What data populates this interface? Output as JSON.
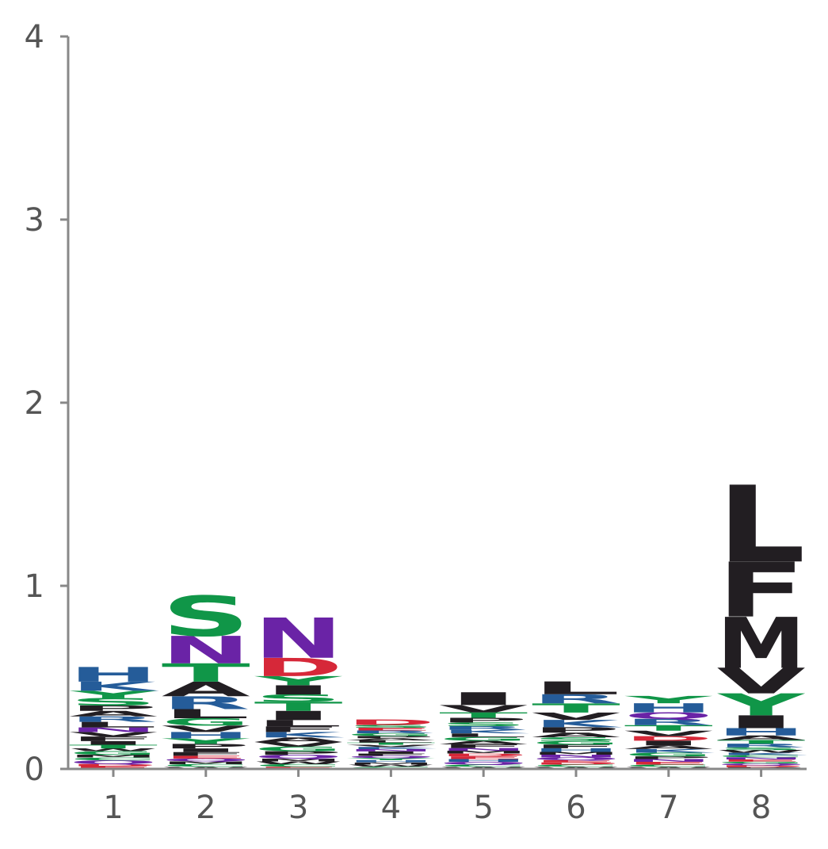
{
  "chart_data": {
    "type": "sequence-logo",
    "ylim": [
      0,
      4
    ],
    "yticks": [
      "0",
      "1",
      "2",
      "3",
      "4"
    ],
    "positions": [
      "1",
      "2",
      "3",
      "4",
      "5",
      "6",
      "7",
      "8"
    ],
    "colors": {
      "polar": "#109648",
      "basic": "#255C99",
      "acidic": "#D62839",
      "hydrophobic": "#221E22",
      "neutral": "#7D3CB5",
      "amide": "#6A23A6"
    },
    "stacks": [
      {
        "position": "1",
        "letters": [
          {
            "aa": "E",
            "h": 0.015,
            "color": "acidic"
          },
          {
            "aa": "D",
            "h": 0.012,
            "color": "acidic"
          },
          {
            "aa": "Q",
            "h": 0.02,
            "color": "amide"
          },
          {
            "aa": "C",
            "h": 0.015,
            "color": "polar"
          },
          {
            "aa": "M",
            "h": 0.015,
            "color": "hydrophobic"
          },
          {
            "aa": "G",
            "h": 0.02,
            "color": "polar"
          },
          {
            "aa": "W",
            "h": 0.015,
            "color": "hydrophobic"
          },
          {
            "aa": "T",
            "h": 0.02,
            "color": "polar"
          },
          {
            "aa": "I",
            "h": 0.02,
            "color": "hydrophobic"
          },
          {
            "aa": "F",
            "h": 0.025,
            "color": "hydrophobic"
          },
          {
            "aa": "V",
            "h": 0.025,
            "color": "hydrophobic"
          },
          {
            "aa": "N",
            "h": 0.025,
            "color": "amide"
          },
          {
            "aa": "L",
            "h": 0.03,
            "color": "hydrophobic"
          },
          {
            "aa": "R",
            "h": 0.03,
            "color": "basic"
          },
          {
            "aa": "A",
            "h": 0.03,
            "color": "hydrophobic"
          },
          {
            "aa": "P",
            "h": 0.03,
            "color": "hydrophobic"
          },
          {
            "aa": "S",
            "h": 0.04,
            "color": "polar"
          },
          {
            "aa": "Y",
            "h": 0.04,
            "color": "polar"
          },
          {
            "aa": "K",
            "h": 0.05,
            "color": "basic"
          },
          {
            "aa": "H",
            "h": 0.08,
            "color": "basic"
          }
        ]
      },
      {
        "position": "2",
        "letters": [
          {
            "aa": "W",
            "h": 0.012,
            "color": "hydrophobic"
          },
          {
            "aa": "C",
            "h": 0.015,
            "color": "polar"
          },
          {
            "aa": "M",
            "h": 0.015,
            "color": "hydrophobic"
          },
          {
            "aa": "Q",
            "h": 0.015,
            "color": "amide"
          },
          {
            "aa": "E",
            "h": 0.015,
            "color": "acidic"
          },
          {
            "aa": "F",
            "h": 0.02,
            "color": "hydrophobic"
          },
          {
            "aa": "I",
            "h": 0.02,
            "color": "hydrophobic"
          },
          {
            "aa": "P",
            "h": 0.025,
            "color": "hydrophobic"
          },
          {
            "aa": "Y",
            "h": 0.03,
            "color": "polar"
          },
          {
            "aa": "H",
            "h": 0.035,
            "color": "basic"
          },
          {
            "aa": "V",
            "h": 0.035,
            "color": "hydrophobic"
          },
          {
            "aa": "G",
            "h": 0.04,
            "color": "polar"
          },
          {
            "aa": "L",
            "h": 0.05,
            "color": "hydrophobic"
          },
          {
            "aa": "R",
            "h": 0.07,
            "color": "basic"
          },
          {
            "aa": "A",
            "h": 0.08,
            "color": "hydrophobic"
          },
          {
            "aa": "T",
            "h": 0.1,
            "color": "polar"
          },
          {
            "aa": "N",
            "h": 0.15,
            "color": "amide"
          },
          {
            "aa": "S",
            "h": 0.22,
            "color": "polar"
          }
        ]
      },
      {
        "position": "3",
        "letters": [
          {
            "aa": "E",
            "h": 0.012,
            "color": "acidic"
          },
          {
            "aa": "C",
            "h": 0.015,
            "color": "polar"
          },
          {
            "aa": "W",
            "h": 0.015,
            "color": "hydrophobic"
          },
          {
            "aa": "M",
            "h": 0.015,
            "color": "hydrophobic"
          },
          {
            "aa": "Q",
            "h": 0.02,
            "color": "amide"
          },
          {
            "aa": "P",
            "h": 0.02,
            "color": "hydrophobic"
          },
          {
            "aa": "G",
            "h": 0.025,
            "color": "polar"
          },
          {
            "aa": "V",
            "h": 0.025,
            "color": "hydrophobic"
          },
          {
            "aa": "A",
            "h": 0.025,
            "color": "hydrophobic"
          },
          {
            "aa": "K",
            "h": 0.03,
            "color": "basic"
          },
          {
            "aa": "F",
            "h": 0.03,
            "color": "hydrophobic"
          },
          {
            "aa": "L",
            "h": 0.035,
            "color": "hydrophobic"
          },
          {
            "aa": "I",
            "h": 0.05,
            "color": "hydrophobic"
          },
          {
            "aa": "T",
            "h": 0.05,
            "color": "polar"
          },
          {
            "aa": "S",
            "h": 0.04,
            "color": "polar"
          },
          {
            "aa": "I",
            "h": 0.05,
            "color": "hydrophobic"
          },
          {
            "aa": "Y",
            "h": 0.05,
            "color": "polar"
          },
          {
            "aa": "D",
            "h": 0.1,
            "color": "acidic"
          },
          {
            "aa": "N",
            "h": 0.22,
            "color": "amide"
          }
        ]
      },
      {
        "position": "4",
        "letters": [
          {
            "aa": "C",
            "h": 0.012,
            "color": "polar"
          },
          {
            "aa": "W",
            "h": 0.012,
            "color": "hydrophobic"
          },
          {
            "aa": "M",
            "h": 0.012,
            "color": "hydrophobic"
          },
          {
            "aa": "H",
            "h": 0.012,
            "color": "basic"
          },
          {
            "aa": "Y",
            "h": 0.012,
            "color": "polar"
          },
          {
            "aa": "Q",
            "h": 0.012,
            "color": "amide"
          },
          {
            "aa": "F",
            "h": 0.012,
            "color": "hydrophobic"
          },
          {
            "aa": "I",
            "h": 0.012,
            "color": "hydrophobic"
          },
          {
            "aa": "N",
            "h": 0.012,
            "color": "amide"
          },
          {
            "aa": "K",
            "h": 0.012,
            "color": "basic"
          },
          {
            "aa": "V",
            "h": 0.012,
            "color": "hydrophobic"
          },
          {
            "aa": "T",
            "h": 0.012,
            "color": "polar"
          },
          {
            "aa": "L",
            "h": 0.012,
            "color": "hydrophobic"
          },
          {
            "aa": "A",
            "h": 0.012,
            "color": "hydrophobic"
          },
          {
            "aa": "P",
            "h": 0.012,
            "color": "hydrophobic"
          },
          {
            "aa": "G",
            "h": 0.015,
            "color": "polar"
          },
          {
            "aa": "R",
            "h": 0.015,
            "color": "basic"
          },
          {
            "aa": "E",
            "h": 0.015,
            "color": "acidic"
          },
          {
            "aa": "S",
            "h": 0.015,
            "color": "polar"
          },
          {
            "aa": "D",
            "h": 0.03,
            "color": "acidic"
          }
        ]
      },
      {
        "position": "5",
        "letters": [
          {
            "aa": "W",
            "h": 0.012,
            "color": "hydrophobic"
          },
          {
            "aa": "C",
            "h": 0.012,
            "color": "polar"
          },
          {
            "aa": "Q",
            "h": 0.015,
            "color": "amide"
          },
          {
            "aa": "H",
            "h": 0.015,
            "color": "basic"
          },
          {
            "aa": "E",
            "h": 0.015,
            "color": "acidic"
          },
          {
            "aa": "D",
            "h": 0.015,
            "color": "acidic"
          },
          {
            "aa": "M",
            "h": 0.015,
            "color": "hydrophobic"
          },
          {
            "aa": "N",
            "h": 0.015,
            "color": "amide"
          },
          {
            "aa": "F",
            "h": 0.02,
            "color": "hydrophobic"
          },
          {
            "aa": "A",
            "h": 0.02,
            "color": "hydrophobic"
          },
          {
            "aa": "G",
            "h": 0.02,
            "color": "polar"
          },
          {
            "aa": "L",
            "h": 0.02,
            "color": "hydrophobic"
          },
          {
            "aa": "K",
            "h": 0.02,
            "color": "basic"
          },
          {
            "aa": "R",
            "h": 0.02,
            "color": "basic"
          },
          {
            "aa": "S",
            "h": 0.02,
            "color": "polar"
          },
          {
            "aa": "P",
            "h": 0.025,
            "color": "hydrophobic"
          },
          {
            "aa": "T",
            "h": 0.03,
            "color": "polar"
          },
          {
            "aa": "V",
            "h": 0.04,
            "color": "hydrophobic"
          },
          {
            "aa": "I",
            "h": 0.07,
            "color": "hydrophobic"
          }
        ]
      },
      {
        "position": "6",
        "letters": [
          {
            "aa": "W",
            "h": 0.012,
            "color": "hydrophobic"
          },
          {
            "aa": "C",
            "h": 0.012,
            "color": "polar"
          },
          {
            "aa": "D",
            "h": 0.012,
            "color": "acidic"
          },
          {
            "aa": "E",
            "h": 0.012,
            "color": "acidic"
          },
          {
            "aa": "Q",
            "h": 0.015,
            "color": "amide"
          },
          {
            "aa": "N",
            "h": 0.015,
            "color": "amide"
          },
          {
            "aa": "M",
            "h": 0.015,
            "color": "hydrophobic"
          },
          {
            "aa": "H",
            "h": 0.02,
            "color": "basic"
          },
          {
            "aa": "F",
            "h": 0.02,
            "color": "hydrophobic"
          },
          {
            "aa": "G",
            "h": 0.02,
            "color": "polar"
          },
          {
            "aa": "S",
            "h": 0.02,
            "color": "polar"
          },
          {
            "aa": "A",
            "h": 0.025,
            "color": "hydrophobic"
          },
          {
            "aa": "P",
            "h": 0.03,
            "color": "hydrophobic"
          },
          {
            "aa": "K",
            "h": 0.04,
            "color": "basic"
          },
          {
            "aa": "V",
            "h": 0.04,
            "color": "hydrophobic"
          },
          {
            "aa": "T",
            "h": 0.05,
            "color": "polar"
          },
          {
            "aa": "R",
            "h": 0.05,
            "color": "basic"
          },
          {
            "aa": "L",
            "h": 0.07,
            "color": "hydrophobic"
          }
        ]
      },
      {
        "position": "7",
        "letters": [
          {
            "aa": "W",
            "h": 0.012,
            "color": "hydrophobic"
          },
          {
            "aa": "C",
            "h": 0.012,
            "color": "polar"
          },
          {
            "aa": "E",
            "h": 0.015,
            "color": "acidic"
          },
          {
            "aa": "N",
            "h": 0.015,
            "color": "amide"
          },
          {
            "aa": "P",
            "h": 0.015,
            "color": "hydrophobic"
          },
          {
            "aa": "G",
            "h": 0.02,
            "color": "polar"
          },
          {
            "aa": "K",
            "h": 0.02,
            "color": "basic"
          },
          {
            "aa": "A",
            "h": 0.02,
            "color": "hydrophobic"
          },
          {
            "aa": "I",
            "h": 0.025,
            "color": "hydrophobic"
          },
          {
            "aa": "D",
            "h": 0.025,
            "color": "acidic"
          },
          {
            "aa": "V",
            "h": 0.03,
            "color": "hydrophobic"
          },
          {
            "aa": "T",
            "h": 0.03,
            "color": "polar"
          },
          {
            "aa": "R",
            "h": 0.035,
            "color": "basic"
          },
          {
            "aa": "Q",
            "h": 0.035,
            "color": "amide"
          },
          {
            "aa": "H",
            "h": 0.05,
            "color": "basic"
          },
          {
            "aa": "Y",
            "h": 0.04,
            "color": "polar"
          }
        ]
      },
      {
        "position": "8",
        "letters": [
          {
            "aa": "P",
            "h": 0.01,
            "color": "hydrophobic"
          },
          {
            "aa": "D",
            "h": 0.01,
            "color": "acidic"
          },
          {
            "aa": "Q",
            "h": 0.01,
            "color": "amide"
          },
          {
            "aa": "G",
            "h": 0.01,
            "color": "polar"
          },
          {
            "aa": "E",
            "h": 0.012,
            "color": "acidic"
          },
          {
            "aa": "N",
            "h": 0.012,
            "color": "amide"
          },
          {
            "aa": "C",
            "h": 0.012,
            "color": "polar"
          },
          {
            "aa": "K",
            "h": 0.012,
            "color": "basic"
          },
          {
            "aa": "W",
            "h": 0.015,
            "color": "hydrophobic"
          },
          {
            "aa": "S",
            "h": 0.015,
            "color": "polar"
          },
          {
            "aa": "R",
            "h": 0.02,
            "color": "basic"
          },
          {
            "aa": "T",
            "h": 0.02,
            "color": "polar"
          },
          {
            "aa": "A",
            "h": 0.025,
            "color": "hydrophobic"
          },
          {
            "aa": "H",
            "h": 0.04,
            "color": "basic"
          },
          {
            "aa": "I",
            "h": 0.07,
            "color": "hydrophobic"
          },
          {
            "aa": "Y",
            "h": 0.12,
            "color": "polar"
          },
          {
            "aa": "V",
            "h": 0.14,
            "color": "hydrophobic"
          },
          {
            "aa": "M",
            "h": 0.28,
            "color": "hydrophobic"
          },
          {
            "aa": "F",
            "h": 0.3,
            "color": "hydrophobic"
          },
          {
            "aa": "L",
            "h": 0.42,
            "color": "hydrophobic"
          }
        ]
      }
    ]
  }
}
